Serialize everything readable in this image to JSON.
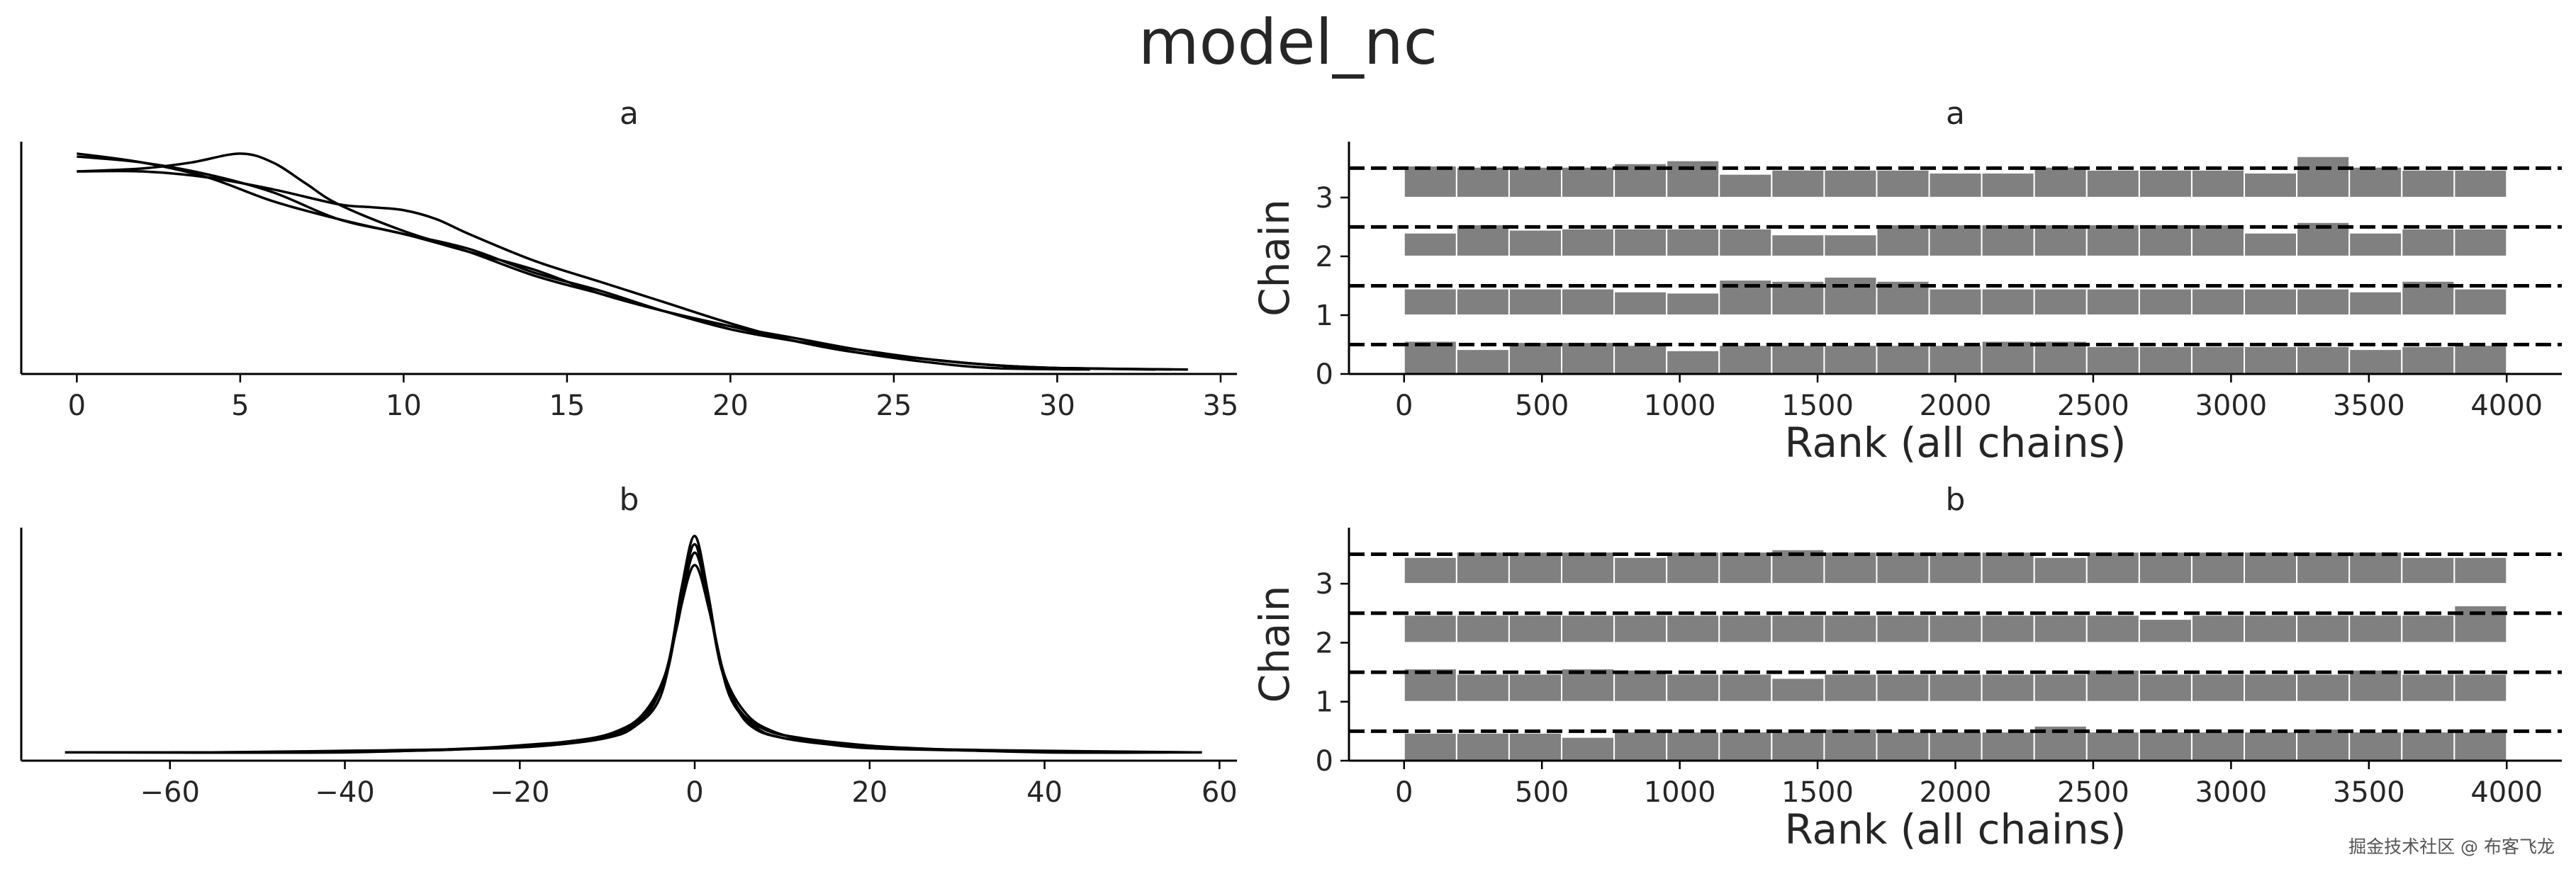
{
  "figure": {
    "title": "model_nc",
    "watermark": "掘金技术社区 @ 布客飞龙",
    "colors": {
      "line": "#000000",
      "bar": "#808080",
      "bar_edge": "#ffffff",
      "axis": "#000000",
      "text": "#262626"
    }
  },
  "chart_data": [
    {
      "type": "line",
      "title": "a",
      "xlabel": "",
      "ylabel": "",
      "xlim": [
        -1.7,
        35.5
      ],
      "ylim": [
        0,
        0.078
      ],
      "xticks": [
        0,
        5,
        10,
        15,
        20,
        25,
        30,
        35
      ],
      "yticks": [],
      "grid": false,
      "series": [
        {
          "x": [
            0,
            2,
            4,
            6,
            8,
            10,
            12,
            14,
            16,
            18,
            20,
            22,
            24,
            26,
            28,
            30,
            33.5
          ],
          "y": [
            0.074,
            0.071,
            0.066,
            0.058,
            0.052,
            0.047,
            0.042,
            0.034,
            0.028,
            0.021,
            0.015,
            0.011,
            0.008,
            0.005,
            0.003,
            0.002,
            0.0015
          ]
        },
        {
          "x": [
            0,
            2,
            4,
            6,
            8,
            10,
            12,
            14,
            16,
            18,
            20,
            22,
            24,
            26,
            28,
            30,
            33
          ],
          "y": [
            0.073,
            0.071,
            0.067,
            0.061,
            0.052,
            0.047,
            0.041,
            0.035,
            0.027,
            0.021,
            0.016,
            0.012,
            0.008,
            0.005,
            0.003,
            0.002,
            0.0015
          ]
        },
        {
          "x": [
            0,
            2,
            3.5,
            5,
            6,
            7,
            8,
            10,
            12,
            14,
            16,
            18,
            20,
            22,
            24,
            26,
            28,
            31
          ],
          "y": [
            0.068,
            0.069,
            0.071,
            0.074,
            0.071,
            0.064,
            0.057,
            0.048,
            0.041,
            0.033,
            0.027,
            0.021,
            0.016,
            0.011,
            0.007,
            0.004,
            0.002,
            0.0015
          ]
        },
        {
          "x": [
            0,
            2,
            4,
            6,
            8,
            9,
            10,
            11,
            12,
            14,
            16,
            18,
            20,
            22,
            24,
            26,
            28,
            30,
            34
          ],
          "y": [
            0.068,
            0.068,
            0.066,
            0.062,
            0.057,
            0.056,
            0.055,
            0.052,
            0.047,
            0.038,
            0.031,
            0.024,
            0.017,
            0.011,
            0.007,
            0.005,
            0.003,
            0.002,
            0.0015
          ]
        }
      ]
    },
    {
      "type": "bar",
      "title": "a",
      "xlabel": "Rank (all chains)",
      "ylabel": "Chain",
      "xlim": [
        -200,
        4200
      ],
      "ylim": [
        0,
        3.95
      ],
      "xticks": [
        0,
        500,
        1000,
        1500,
        2000,
        2500,
        3000,
        3500,
        4000
      ],
      "yticks": [
        0,
        1,
        2,
        3
      ],
      "bin_edges": [
        0,
        190.5,
        381,
        571.5,
        762,
        952.5,
        1143,
        1333.5,
        1524,
        1714.5,
        1905,
        2095.5,
        2286,
        2476.5,
        2667,
        2857.5,
        3048,
        3238.5,
        3429,
        3619.5,
        3810,
        4000
      ],
      "reference_lines": [
        0.5,
        1.5,
        2.5,
        3.5
      ],
      "chains": [
        {
          "chain": 0,
          "values": [
            0.56,
            0.42,
            0.54,
            0.54,
            0.49,
            0.4,
            0.49,
            0.49,
            0.49,
            0.49,
            0.49,
            0.56,
            0.56,
            0.47,
            0.47,
            0.47,
            0.47,
            0.47,
            0.42,
            0.47,
            0.49
          ]
        },
        {
          "chain": 1,
          "values": [
            1.45,
            1.45,
            1.45,
            1.45,
            1.4,
            1.38,
            1.6,
            1.58,
            1.65,
            1.58,
            1.45,
            1.45,
            1.45,
            1.45,
            1.45,
            1.45,
            1.45,
            1.45,
            1.4,
            1.58,
            1.45
          ]
        },
        {
          "chain": 2,
          "values": [
            2.4,
            2.54,
            2.45,
            2.47,
            2.47,
            2.47,
            2.47,
            2.37,
            2.37,
            2.54,
            2.54,
            2.54,
            2.54,
            2.54,
            2.54,
            2.54,
            2.4,
            2.58,
            2.4,
            2.47,
            2.47
          ]
        },
        {
          "chain": 3,
          "values": [
            3.54,
            3.52,
            3.52,
            3.52,
            3.58,
            3.63,
            3.4,
            3.47,
            3.47,
            3.47,
            3.42,
            3.42,
            3.52,
            3.47,
            3.47,
            3.47,
            3.42,
            3.7,
            3.52,
            3.47,
            3.47
          ]
        }
      ]
    },
    {
      "type": "line",
      "title": "b",
      "xlabel": "",
      "ylabel": "",
      "xlim": [
        -77,
        62
      ],
      "ylim": [
        0,
        0.112
      ],
      "xticks": [
        -60,
        -40,
        -20,
        0,
        20,
        40,
        60
      ],
      "yticks": [],
      "grid": false,
      "series": [
        {
          "x": [
            -72,
            -50,
            -30,
            -20,
            -15,
            -10,
            -7,
            -5,
            -3,
            -1.5,
            0,
            1.5,
            3,
            5,
            7,
            10,
            15,
            20,
            30,
            45,
            58
          ],
          "y": [
            0.004,
            0.004,
            0.005,
            0.007,
            0.009,
            0.012,
            0.017,
            0.026,
            0.045,
            0.08,
            0.104,
            0.078,
            0.045,
            0.024,
            0.015,
            0.011,
            0.008,
            0.006,
            0.005,
            0.004,
            0.004
          ]
        },
        {
          "x": [
            -60,
            -40,
            -25,
            -18,
            -12,
            -8,
            -5,
            -3,
            -1.5,
            0,
            1.5,
            3,
            5,
            8,
            12,
            18,
            25,
            40,
            55
          ],
          "y": [
            0.004,
            0.004,
            0.006,
            0.008,
            0.01,
            0.014,
            0.025,
            0.047,
            0.083,
            0.108,
            0.081,
            0.046,
            0.025,
            0.015,
            0.011,
            0.008,
            0.006,
            0.004,
            0.004
          ]
        },
        {
          "x": [
            -70,
            -45,
            -30,
            -20,
            -13,
            -9,
            -6,
            -3.5,
            -1.8,
            0,
            1.8,
            3.5,
            6,
            9,
            13,
            20,
            30,
            45
          ],
          "y": [
            0.004,
            0.004,
            0.005,
            0.007,
            0.01,
            0.014,
            0.022,
            0.04,
            0.07,
            0.094,
            0.07,
            0.04,
            0.022,
            0.014,
            0.01,
            0.007,
            0.005,
            0.004
          ]
        },
        {
          "x": [
            -55,
            -35,
            -22,
            -15,
            -10,
            -7,
            -4,
            -2,
            0,
            2,
            4,
            7,
            10,
            15,
            22,
            35,
            57
          ],
          "y": [
            0.004,
            0.005,
            0.006,
            0.008,
            0.011,
            0.016,
            0.03,
            0.065,
            0.1,
            0.066,
            0.031,
            0.016,
            0.011,
            0.008,
            0.006,
            0.005,
            0.004
          ]
        }
      ]
    },
    {
      "type": "bar",
      "title": "b",
      "xlabel": "Rank (all chains)",
      "ylabel": "Chain",
      "xlim": [
        -200,
        4200
      ],
      "ylim": [
        0,
        3.95
      ],
      "xticks": [
        0,
        500,
        1000,
        1500,
        2000,
        2500,
        3000,
        3500,
        4000
      ],
      "yticks": [
        0,
        1,
        2,
        3
      ],
      "bin_edges": [
        0,
        190.5,
        381,
        571.5,
        762,
        952.5,
        1143,
        1333.5,
        1524,
        1714.5,
        1905,
        2095.5,
        2286,
        2476.5,
        2667,
        2857.5,
        3048,
        3238.5,
        3429,
        3619.5,
        3810,
        4000
      ],
      "reference_lines": [
        0.5,
        1.5,
        2.5,
        3.5
      ],
      "chains": [
        {
          "chain": 0,
          "values": [
            0.47,
            0.47,
            0.47,
            0.4,
            0.49,
            0.49,
            0.49,
            0.49,
            0.54,
            0.49,
            0.49,
            0.49,
            0.59,
            0.49,
            0.49,
            0.49,
            0.49,
            0.54,
            0.49,
            0.49,
            0.49
          ]
        },
        {
          "chain": 1,
          "values": [
            1.56,
            1.47,
            1.47,
            1.56,
            1.54,
            1.47,
            1.47,
            1.4,
            1.47,
            1.47,
            1.47,
            1.47,
            1.47,
            1.54,
            1.47,
            1.47,
            1.47,
            1.47,
            1.54,
            1.47,
            1.47
          ]
        },
        {
          "chain": 2,
          "values": [
            2.47,
            2.47,
            2.47,
            2.47,
            2.47,
            2.47,
            2.47,
            2.47,
            2.47,
            2.47,
            2.47,
            2.47,
            2.47,
            2.47,
            2.4,
            2.47,
            2.47,
            2.47,
            2.47,
            2.47,
            2.63
          ]
        },
        {
          "chain": 3,
          "values": [
            3.45,
            3.54,
            3.54,
            3.54,
            3.45,
            3.54,
            3.54,
            3.58,
            3.54,
            3.54,
            3.54,
            3.54,
            3.45,
            3.54,
            3.54,
            3.54,
            3.54,
            3.54,
            3.54,
            3.45,
            3.45
          ]
        }
      ]
    }
  ]
}
